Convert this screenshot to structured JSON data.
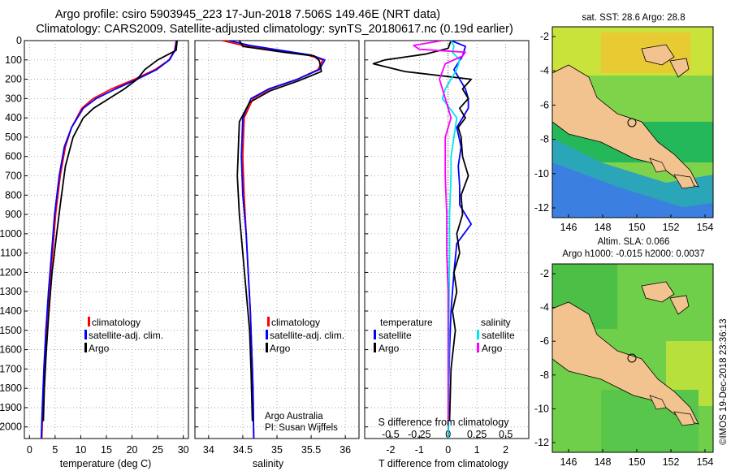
{
  "header": {
    "line1": "Argo profile: csiro 5903945_223 17-Jun-2018 7.506S 149.46E (NRT data)",
    "line2": "Climatology: CARS2009. Satellite-adjusted climatology: synTS_20180617.nc (0.19d earlier)"
  },
  "colors": {
    "climatology": "#ff0000",
    "satellite": "#0000ff",
    "argo": "#000000",
    "sat_salinity": "#00e5ee",
    "argo_salinity": "#ff00ff",
    "land": "#f3c38f"
  },
  "chart_data": [
    {
      "type": "line",
      "id": "temperature",
      "xlabel": "temperature (deg C)",
      "ylabel": "depth",
      "xlim": [
        -1,
        31
      ],
      "ylim": [
        2060,
        0
      ],
      "xticks": [
        0,
        5,
        10,
        15,
        20,
        25,
        30
      ],
      "yticks": [
        0,
        100,
        200,
        300,
        400,
        500,
        600,
        700,
        800,
        900,
        1000,
        1100,
        1200,
        1300,
        1400,
        1500,
        1600,
        1700,
        1800,
        1900,
        2000
      ],
      "legend": [
        "climatology",
        "satellite-adj. clim.",
        "Argo"
      ],
      "series": [
        {
          "name": "climatology",
          "color": "#ff0000",
          "x": [
            28.6,
            28.3,
            27.2,
            24.5,
            20.5,
            16.0,
            12.4,
            10.2,
            8.2,
            7.0,
            6.0,
            5.1,
            4.5,
            3.8,
            3.3,
            2.9,
            2.6,
            2.4
          ],
          "y": [
            0,
            50,
            100,
            150,
            200,
            250,
            300,
            350,
            450,
            550,
            700,
            900,
            1100,
            1300,
            1500,
            1700,
            1900,
            2060
          ]
        },
        {
          "name": "satellite-adj. clim.",
          "color": "#0000ff",
          "x": [
            28.7,
            28.4,
            27.3,
            24.8,
            21.0,
            16.8,
            13.0,
            10.5,
            8.2,
            6.8,
            5.8,
            4.9,
            4.3,
            3.7,
            3.2,
            2.8,
            2.5,
            2.3
          ],
          "y": [
            0,
            50,
            100,
            150,
            200,
            250,
            300,
            350,
            450,
            550,
            700,
            900,
            1100,
            1300,
            1500,
            1700,
            1900,
            2060
          ]
        },
        {
          "name": "Argo",
          "color": "#000000",
          "x": [
            28.8,
            28.6,
            25.0,
            22.5,
            21.0,
            18.5,
            15.5,
            12.5,
            10.5,
            8.5,
            7.0,
            6.0,
            5.3,
            4.4,
            3.8,
            3.3,
            2.9,
            2.7
          ],
          "y": [
            0,
            50,
            100,
            150,
            200,
            250,
            300,
            350,
            400,
            500,
            650,
            850,
            1000,
            1200,
            1400,
            1600,
            1800,
            1970
          ]
        }
      ]
    },
    {
      "type": "line",
      "id": "salinity",
      "xlabel": "salinity",
      "ylabel": "depth",
      "xlim": [
        33.8,
        36.2
      ],
      "ylim": [
        2060,
        0
      ],
      "xticks": [
        34,
        34.5,
        35,
        35.5,
        36
      ],
      "legend": [
        "climatology",
        "satellite-adj. clim.",
        "Argo"
      ],
      "annotation": [
        "Argo Australia",
        "PI: Susan Wijffels"
      ],
      "series": [
        {
          "name": "climatology",
          "color": "#ff0000",
          "x": [
            34.2,
            34.5,
            35.0,
            35.45,
            35.67,
            35.6,
            35.3,
            34.9,
            34.65,
            34.52,
            34.5,
            34.52,
            34.55,
            34.58,
            34.61,
            34.63,
            34.65,
            34.66
          ],
          "y": [
            0,
            25,
            50,
            75,
            100,
            150,
            200,
            250,
            300,
            400,
            600,
            800,
            1000,
            1200,
            1400,
            1600,
            1800,
            2060
          ]
        },
        {
          "name": "satellite-adj. clim.",
          "color": "#0000ff",
          "x": [
            34.3,
            34.6,
            35.05,
            35.5,
            35.7,
            35.62,
            35.3,
            34.88,
            34.62,
            34.5,
            34.48,
            34.5,
            34.55,
            34.58,
            34.61,
            34.63,
            34.65,
            34.66
          ],
          "y": [
            0,
            25,
            50,
            75,
            100,
            150,
            200,
            250,
            300,
            400,
            600,
            800,
            1000,
            1200,
            1400,
            1600,
            1800,
            2060
          ]
        },
        {
          "name": "Argo",
          "color": "#000000",
          "x": [
            34.45,
            34.5,
            35.1,
            35.55,
            35.62,
            35.65,
            35.3,
            34.9,
            34.6,
            34.45,
            34.42,
            34.45,
            34.5,
            34.55,
            34.6,
            34.62,
            34.64
          ],
          "y": [
            0,
            30,
            60,
            80,
            105,
            160,
            210,
            260,
            320,
            420,
            700,
            900,
            1100,
            1300,
            1500,
            1700,
            1970
          ]
        }
      ]
    },
    {
      "type": "line",
      "id": "differences",
      "xlabel": "T difference from climatology",
      "xlabel2": "S difference from climatology",
      "xlim": [
        -2.9,
        2.8
      ],
      "ylim": [
        2060,
        0
      ],
      "xticks": [
        -2,
        -1,
        0,
        1,
        2
      ],
      "sticks": [
        -0.5,
        -0.25,
        0,
        0.25,
        0.5
      ],
      "s_scale": 4,
      "legend_left_title": "temperature",
      "legend_right_title": "salinity",
      "legend_left": [
        "satellite",
        "Argo"
      ],
      "legend_right": [
        "satellite",
        "Argo"
      ],
      "series": [
        {
          "name": "T satellite",
          "color": "#0000ff",
          "x": [
            0.1,
            0.6,
            0.5,
            0.2,
            0.6,
            0.7,
            0.7,
            0.5,
            0.3,
            0.45,
            0.35,
            0.4,
            0.4,
            0.8,
            0.3,
            0.2,
            0.1,
            0.05,
            0.02,
            0.0
          ],
          "y": [
            0,
            30,
            80,
            150,
            250,
            300,
            350,
            400,
            450,
            550,
            650,
            750,
            850,
            950,
            1050,
            1200,
            1400,
            1600,
            1800,
            2060
          ]
        },
        {
          "name": "T Argo",
          "color": "#000000",
          "x": [
            0.1,
            0.0,
            -0.8,
            -2.2,
            -2.6,
            -1.5,
            0.8,
            0.5,
            0.7,
            0.4,
            0.6,
            0.35,
            0.45,
            0.5,
            0.7,
            0.45,
            0.5,
            0.3,
            0.4,
            0.2,
            0.3,
            0.15,
            0.25,
            0.1,
            0.05
          ],
          "y": [
            0,
            40,
            70,
            100,
            120,
            160,
            200,
            250,
            300,
            350,
            400,
            450,
            500,
            600,
            700,
            800,
            900,
            1000,
            1100,
            1200,
            1300,
            1400,
            1500,
            1700,
            1970
          ]
        },
        {
          "name": "S satellite",
          "color": "#00e5ee",
          "x": [
            0.1,
            0.2,
            0.15,
            0.4,
            0.3,
            0.1,
            -0.1,
            -0.2,
            0.3,
            0.2,
            0.1,
            0.1,
            0.05,
            0.05,
            0.03,
            0.02,
            0.0
          ],
          "y": [
            0,
            30,
            60,
            100,
            150,
            200,
            250,
            300,
            400,
            500,
            600,
            700,
            900,
            1100,
            1400,
            1700,
            2060
          ]
        },
        {
          "name": "S Argo",
          "color": "#ff00ff",
          "x": [
            -0.2,
            -1.2,
            -1.0,
            0.6,
            0.5,
            -0.1,
            -0.3,
            0.1,
            -0.1,
            -0.1,
            -0.05,
            -0.05,
            0.0,
            0.0,
            0.0
          ],
          "y": [
            0,
            25,
            45,
            60,
            80,
            120,
            200,
            400,
            500,
            700,
            900,
            1100,
            1300,
            1500,
            1970
          ]
        }
      ]
    }
  ],
  "maps": [
    {
      "title": "sat. SST: 28.6 Argo: 28.8",
      "xticks": [
        "146",
        "148",
        "150",
        "152",
        "154"
      ],
      "yticks": [
        "-2",
        "-4",
        "-6",
        "-8",
        "-10",
        "-12"
      ]
    },
    {
      "title_line1": "Altim. SLA: 0.066",
      "title_line2": "Argo h1000: -0.015 h2000: 0.0037",
      "xticks": [
        "146",
        "148",
        "150",
        "152",
        "154"
      ],
      "yticks": [
        "-2",
        "-4",
        "-6",
        "-8",
        "-10",
        "-12"
      ]
    }
  ],
  "footer": {
    "credit": "©IMOS 19-Dec-2018 23:36:13"
  }
}
